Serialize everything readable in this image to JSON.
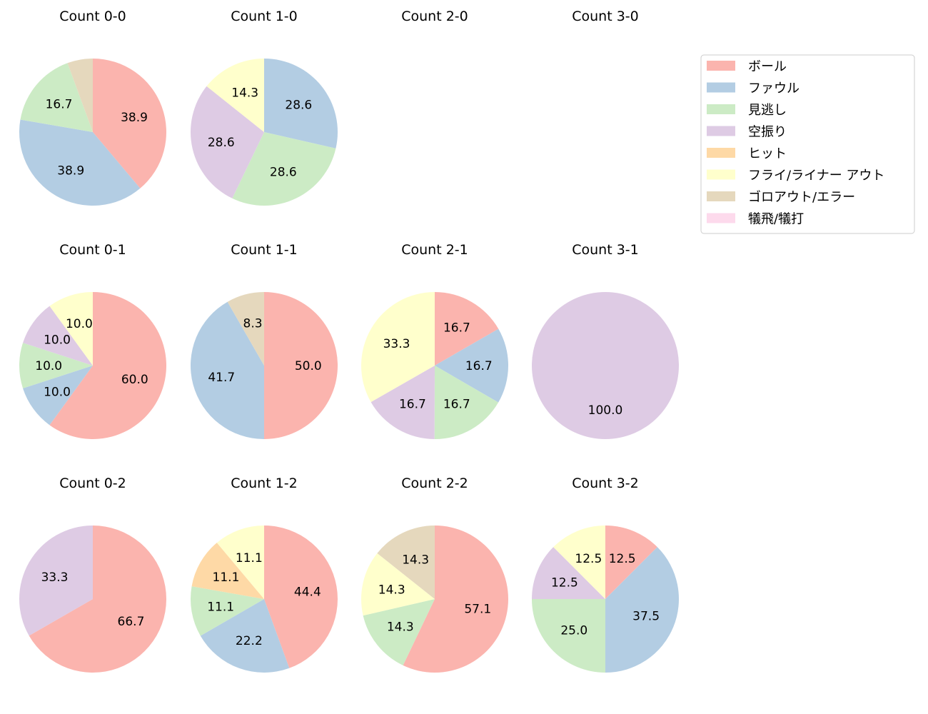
{
  "chart_data": {
    "type": "pie",
    "start_angle_deg": 90,
    "direction": "clockwise",
    "legend": {
      "placement": "upper-right",
      "entries": [
        {
          "name": "ボール",
          "color": "#fbb4ae"
        },
        {
          "name": "ファウル",
          "color": "#b3cde3"
        },
        {
          "name": "見逃し",
          "color": "#ccebc5"
        },
        {
          "name": "空振り",
          "color": "#decbe4"
        },
        {
          "name": "ヒット",
          "color": "#fed9a6"
        },
        {
          "name": "フライ/ライナー アウト",
          "color": "#ffffcc"
        },
        {
          "name": "ゴロアウト/エラー",
          "color": "#e5d8bd"
        },
        {
          "name": "犠飛/犠打",
          "color": "#fddaec"
        }
      ]
    },
    "charts": [
      {
        "title": "Count 0-0",
        "values": [
          38.9,
          38.9,
          16.7,
          0,
          0,
          0,
          5.6,
          0
        ]
      },
      {
        "title": "Count 1-0",
        "values": [
          0,
          28.6,
          28.6,
          28.6,
          0,
          14.3,
          0,
          0
        ]
      },
      {
        "title": "Count 2-0",
        "values": []
      },
      {
        "title": "Count 3-0",
        "values": []
      },
      {
        "title": "Count 0-1",
        "values": [
          60.0,
          10.0,
          10.0,
          10.0,
          0,
          10.0,
          0,
          0
        ]
      },
      {
        "title": "Count 1-1",
        "values": [
          50.0,
          41.7,
          0,
          0,
          0,
          0,
          8.3,
          0
        ]
      },
      {
        "title": "Count 2-1",
        "values": [
          16.7,
          16.7,
          16.7,
          16.7,
          0,
          33.3,
          0,
          0
        ]
      },
      {
        "title": "Count 3-1",
        "values": [
          0,
          0,
          0,
          100.0,
          0,
          0,
          0,
          0
        ]
      },
      {
        "title": "Count 0-2",
        "values": [
          66.7,
          0,
          0,
          33.3,
          0,
          0,
          0,
          0
        ]
      },
      {
        "title": "Count 1-2",
        "values": [
          44.4,
          22.2,
          11.1,
          0,
          11.1,
          11.1,
          0,
          0
        ]
      },
      {
        "title": "Count 2-2",
        "values": [
          57.1,
          0,
          14.3,
          0,
          0,
          14.3,
          14.3,
          0
        ]
      },
      {
        "title": "Count 3-2",
        "values": [
          12.5,
          37.5,
          25.0,
          12.5,
          0,
          12.5,
          0,
          0
        ]
      }
    ]
  }
}
